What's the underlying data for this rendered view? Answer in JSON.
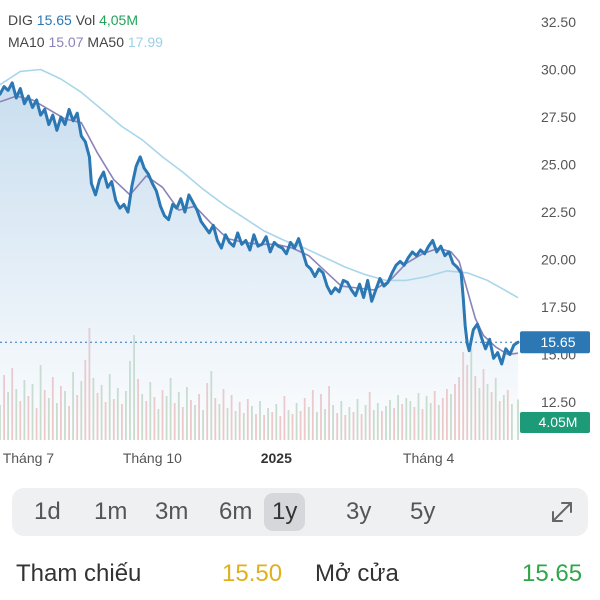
{
  "header": {
    "ticker": "DIG",
    "price": "15.65",
    "vol_label": "Vol",
    "vol_value": "4,05M",
    "ma10_label": "MA10",
    "ma10_value": "15.07",
    "ma50_label": "MA50",
    "ma50_value": "17.99"
  },
  "chart_data": {
    "type": "line",
    "ylim": [
      12.5,
      32.5
    ],
    "y_ticks": [
      "32.50",
      "30.00",
      "27.50",
      "25.00",
      "22.50",
      "20.00",
      "17.50",
      "15.00",
      "12.50"
    ],
    "x_ticks": [
      {
        "label": "Tháng 7",
        "index": 14,
        "bold": false
      },
      {
        "label": "Tháng 10",
        "index": 75,
        "bold": false
      },
      {
        "label": "2025",
        "index": 136,
        "bold": true
      },
      {
        "label": "Tháng 4",
        "index": 211,
        "bold": false
      }
    ],
    "current_price_label": "15.65",
    "current_volume_label": "4.05M",
    "price_points": [
      [
        0,
        28.7
      ],
      [
        2,
        29.1
      ],
      [
        4,
        28.9
      ],
      [
        6,
        29.3
      ],
      [
        8,
        28.5
      ],
      [
        10,
        29.0
      ],
      [
        12,
        28.2
      ],
      [
        14,
        28.6
      ],
      [
        16,
        28.0
      ],
      [
        18,
        28.4
      ],
      [
        20,
        27.6
      ],
      [
        22,
        27.9
      ],
      [
        24,
        27.1
      ],
      [
        26,
        27.6
      ],
      [
        28,
        26.8
      ],
      [
        30,
        27.5
      ],
      [
        32,
        27.1
      ],
      [
        34,
        27.9
      ],
      [
        36,
        27.3
      ],
      [
        38,
        27.7
      ],
      [
        40,
        26.5
      ],
      [
        42,
        26.2
      ],
      [
        44,
        25.4
      ],
      [
        45,
        24.0
      ],
      [
        47,
        23.4
      ],
      [
        49,
        24.2
      ],
      [
        51,
        24.6
      ],
      [
        53,
        23.8
      ],
      [
        55,
        24.1
      ],
      [
        57,
        23.1
      ],
      [
        59,
        22.7
      ],
      [
        61,
        22.9
      ],
      [
        63,
        22.5
      ],
      [
        65,
        23.9
      ],
      [
        67,
        24.9
      ],
      [
        69,
        25.4
      ],
      [
        71,
        24.8
      ],
      [
        73,
        24.5
      ],
      [
        75,
        24.0
      ],
      [
        77,
        23.6
      ],
      [
        79,
        22.8
      ],
      [
        81,
        22.3
      ],
      [
        83,
        22.1
      ],
      [
        85,
        22.9
      ],
      [
        87,
        22.7
      ],
      [
        89,
        23.2
      ],
      [
        91,
        22.5
      ],
      [
        93,
        23.4
      ],
      [
        95,
        23.0
      ],
      [
        97,
        22.6
      ],
      [
        99,
        22.0
      ],
      [
        101,
        21.7
      ],
      [
        103,
        21.4
      ],
      [
        105,
        21.8
      ],
      [
        107,
        21.0
      ],
      [
        109,
        20.6
      ],
      [
        111,
        21.3
      ],
      [
        113,
        20.9
      ],
      [
        115,
        20.7
      ],
      [
        117,
        21.4
      ],
      [
        119,
        20.8
      ],
      [
        121,
        21.0
      ],
      [
        123,
        20.5
      ],
      [
        125,
        21.3
      ],
      [
        127,
        20.7
      ],
      [
        129,
        20.8
      ],
      [
        131,
        21.2
      ],
      [
        133,
        20.4
      ],
      [
        135,
        20.9
      ],
      [
        137,
        20.7
      ],
      [
        139,
        20.6
      ],
      [
        141,
        20.3
      ],
      [
        143,
        20.9
      ],
      [
        145,
        20.6
      ],
      [
        147,
        21.1
      ],
      [
        149,
        20.4
      ],
      [
        151,
        19.7
      ],
      [
        153,
        19.5
      ],
      [
        155,
        19.1
      ],
      [
        157,
        19.5
      ],
      [
        159,
        19.3
      ],
      [
        161,
        18.6
      ],
      [
        163,
        18.2
      ],
      [
        165,
        18.5
      ],
      [
        167,
        18.3
      ],
      [
        169,
        18.9
      ],
      [
        171,
        18.8
      ],
      [
        173,
        18.4
      ],
      [
        175,
        18.1
      ],
      [
        177,
        18.7
      ],
      [
        179,
        18.0
      ],
      [
        181,
        18.9
      ],
      [
        183,
        17.8
      ],
      [
        185,
        18.4
      ],
      [
        187,
        19.0
      ],
      [
        189,
        18.6
      ],
      [
        191,
        18.8
      ],
      [
        193,
        19.3
      ],
      [
        195,
        19.7
      ],
      [
        197,
        19.9
      ],
      [
        199,
        19.7
      ],
      [
        201,
        20.1
      ],
      [
        203,
        20.4
      ],
      [
        205,
        20.2
      ],
      [
        207,
        20.5
      ],
      [
        209,
        20.3
      ],
      [
        211,
        20.7
      ],
      [
        213,
        21.0
      ],
      [
        215,
        20.4
      ],
      [
        217,
        20.7
      ],
      [
        219,
        20.2
      ],
      [
        221,
        20.4
      ],
      [
        223,
        19.8
      ],
      [
        225,
        19.6
      ],
      [
        227,
        19.3
      ],
      [
        228,
        18.0
      ],
      [
        229,
        16.5
      ],
      [
        230,
        15.6
      ],
      [
        231,
        15.2
      ],
      [
        233,
        16.3
      ],
      [
        235,
        16.6
      ],
      [
        237,
        15.9
      ],
      [
        239,
        15.3
      ],
      [
        241,
        15.8
      ],
      [
        243,
        14.8
      ],
      [
        245,
        15.1
      ],
      [
        247,
        14.5
      ],
      [
        249,
        15.3
      ],
      [
        251,
        15.0
      ],
      [
        253,
        15.5
      ],
      [
        255,
        15.65
      ]
    ],
    "ma10_points": [
      [
        0,
        28.3
      ],
      [
        8,
        28.6
      ],
      [
        16,
        28.4
      ],
      [
        24,
        27.9
      ],
      [
        32,
        27.4
      ],
      [
        40,
        27.2
      ],
      [
        48,
        25.6
      ],
      [
        56,
        24.2
      ],
      [
        64,
        23.4
      ],
      [
        72,
        24.4
      ],
      [
        80,
        23.8
      ],
      [
        88,
        22.6
      ],
      [
        96,
        22.8
      ],
      [
        104,
        21.9
      ],
      [
        112,
        21.1
      ],
      [
        120,
        20.9
      ],
      [
        128,
        20.8
      ],
      [
        136,
        20.8
      ],
      [
        144,
        20.6
      ],
      [
        152,
        20.2
      ],
      [
        160,
        19.4
      ],
      [
        168,
        18.6
      ],
      [
        176,
        18.5
      ],
      [
        184,
        18.4
      ],
      [
        192,
        18.9
      ],
      [
        200,
        19.8
      ],
      [
        208,
        20.3
      ],
      [
        216,
        20.6
      ],
      [
        222,
        20.4
      ],
      [
        226,
        19.9
      ],
      [
        230,
        18.4
      ],
      [
        234,
        16.9
      ],
      [
        238,
        16.0
      ],
      [
        244,
        15.4
      ],
      [
        250,
        15.0
      ],
      [
        255,
        15.07
      ]
    ],
    "ma50_points": [
      [
        0,
        29.2
      ],
      [
        10,
        29.9
      ],
      [
        20,
        30.0
      ],
      [
        30,
        29.5
      ],
      [
        40,
        28.8
      ],
      [
        50,
        27.9
      ],
      [
        60,
        27.0
      ],
      [
        70,
        26.3
      ],
      [
        80,
        25.4
      ],
      [
        90,
        24.6
      ],
      [
        100,
        23.7
      ],
      [
        110,
        22.9
      ],
      [
        120,
        22.2
      ],
      [
        130,
        21.5
      ],
      [
        140,
        21.0
      ],
      [
        150,
        20.6
      ],
      [
        160,
        20.1
      ],
      [
        170,
        19.6
      ],
      [
        180,
        19.2
      ],
      [
        190,
        18.9
      ],
      [
        200,
        18.9
      ],
      [
        210,
        19.1
      ],
      [
        220,
        19.4
      ],
      [
        230,
        19.3
      ],
      [
        240,
        18.9
      ],
      [
        250,
        18.3
      ],
      [
        255,
        17.99
      ]
    ],
    "volume_max": 12,
    "volumes": [
      {
        "i": 0,
        "v": 3.5,
        "up": true
      },
      {
        "i": 2,
        "v": 6.5,
        "up": false
      },
      {
        "i": 4,
        "v": 4.8,
        "up": true
      },
      {
        "i": 6,
        "v": 7.2,
        "up": false
      },
      {
        "i": 8,
        "v": 5.1,
        "up": true
      },
      {
        "i": 10,
        "v": 3.9,
        "up": false
      },
      {
        "i": 12,
        "v": 6.0,
        "up": true
      },
      {
        "i": 14,
        "v": 4.4,
        "up": false
      },
      {
        "i": 16,
        "v": 5.6,
        "up": true
      },
      {
        "i": 18,
        "v": 3.2,
        "up": false
      },
      {
        "i": 20,
        "v": 7.5,
        "up": true
      },
      {
        "i": 22,
        "v": 5.0,
        "up": false
      },
      {
        "i": 24,
        "v": 4.2,
        "up": true
      },
      {
        "i": 26,
        "v": 6.3,
        "up": false
      },
      {
        "i": 28,
        "v": 3.7,
        "up": true
      },
      {
        "i": 30,
        "v": 5.4,
        "up": false
      },
      {
        "i": 32,
        "v": 4.9,
        "up": true
      },
      {
        "i": 34,
        "v": 3.4,
        "up": false
      },
      {
        "i": 36,
        "v": 6.8,
        "up": true
      },
      {
        "i": 38,
        "v": 4.5,
        "up": false
      },
      {
        "i": 40,
        "v": 5.9,
        "up": true
      },
      {
        "i": 42,
        "v": 8.0,
        "up": false
      },
      {
        "i": 44,
        "v": 11.2,
        "up": false
      },
      {
        "i": 46,
        "v": 6.2,
        "up": true
      },
      {
        "i": 48,
        "v": 4.7,
        "up": false
      },
      {
        "i": 50,
        "v": 5.5,
        "up": true
      },
      {
        "i": 52,
        "v": 3.8,
        "up": false
      },
      {
        "i": 54,
        "v": 6.6,
        "up": true
      },
      {
        "i": 56,
        "v": 4.1,
        "up": false
      },
      {
        "i": 58,
        "v": 5.2,
        "up": true
      },
      {
        "i": 60,
        "v": 3.6,
        "up": false
      },
      {
        "i": 62,
        "v": 4.9,
        "up": true
      },
      {
        "i": 64,
        "v": 7.9,
        "up": true
      },
      {
        "i": 66,
        "v": 10.5,
        "up": true
      },
      {
        "i": 68,
        "v": 6.1,
        "up": false
      },
      {
        "i": 70,
        "v": 4.6,
        "up": true
      },
      {
        "i": 72,
        "v": 3.9,
        "up": false
      },
      {
        "i": 74,
        "v": 5.8,
        "up": true
      },
      {
        "i": 76,
        "v": 4.3,
        "up": false
      },
      {
        "i": 78,
        "v": 3.1,
        "up": true
      },
      {
        "i": 80,
        "v": 5.0,
        "up": false
      },
      {
        "i": 82,
        "v": 4.4,
        "up": true
      },
      {
        "i": 84,
        "v": 6.2,
        "up": true
      },
      {
        "i": 86,
        "v": 3.7,
        "up": false
      },
      {
        "i": 88,
        "v": 4.8,
        "up": true
      },
      {
        "i": 90,
        "v": 3.3,
        "up": false
      },
      {
        "i": 92,
        "v": 5.3,
        "up": true
      },
      {
        "i": 94,
        "v": 4.0,
        "up": false
      },
      {
        "i": 96,
        "v": 3.5,
        "up": true
      },
      {
        "i": 98,
        "v": 4.6,
        "up": false
      },
      {
        "i": 100,
        "v": 3.0,
        "up": true
      },
      {
        "i": 102,
        "v": 5.7,
        "up": false
      },
      {
        "i": 104,
        "v": 6.9,
        "up": true
      },
      {
        "i": 106,
        "v": 4.2,
        "up": false
      },
      {
        "i": 108,
        "v": 3.6,
        "up": true
      },
      {
        "i": 110,
        "v": 5.1,
        "up": false
      },
      {
        "i": 112,
        "v": 3.2,
        "up": true
      },
      {
        "i": 114,
        "v": 4.5,
        "up": false
      },
      {
        "i": 116,
        "v": 2.9,
        "up": true
      },
      {
        "i": 118,
        "v": 3.8,
        "up": false
      },
      {
        "i": 120,
        "v": 2.7,
        "up": true
      },
      {
        "i": 122,
        "v": 4.1,
        "up": false
      },
      {
        "i": 124,
        "v": 3.4,
        "up": true
      },
      {
        "i": 126,
        "v": 2.6,
        "up": false
      },
      {
        "i": 128,
        "v": 3.9,
        "up": true
      },
      {
        "i": 130,
        "v": 2.5,
        "up": false
      },
      {
        "i": 132,
        "v": 3.2,
        "up": true
      },
      {
        "i": 134,
        "v": 2.8,
        "up": false
      },
      {
        "i": 136,
        "v": 3.6,
        "up": true
      },
      {
        "i": 138,
        "v": 2.4,
        "up": false
      },
      {
        "i": 140,
        "v": 4.4,
        "up": false
      },
      {
        "i": 142,
        "v": 3.0,
        "up": true
      },
      {
        "i": 144,
        "v": 2.6,
        "up": false
      },
      {
        "i": 146,
        "v": 3.7,
        "up": true
      },
      {
        "i": 148,
        "v": 2.9,
        "up": false
      },
      {
        "i": 150,
        "v": 4.2,
        "up": false
      },
      {
        "i": 152,
        "v": 3.3,
        "up": true
      },
      {
        "i": 154,
        "v": 5.0,
        "up": false
      },
      {
        "i": 156,
        "v": 2.8,
        "up": true
      },
      {
        "i": 158,
        "v": 4.6,
        "up": false
      },
      {
        "i": 160,
        "v": 3.1,
        "up": true
      },
      {
        "i": 162,
        "v": 5.4,
        "up": false
      },
      {
        "i": 164,
        "v": 3.5,
        "up": true
      },
      {
        "i": 166,
        "v": 2.7,
        "up": false
      },
      {
        "i": 168,
        "v": 3.9,
        "up": true
      },
      {
        "i": 170,
        "v": 2.5,
        "up": false
      },
      {
        "i": 172,
        "v": 3.3,
        "up": true
      },
      {
        "i": 174,
        "v": 2.8,
        "up": false
      },
      {
        "i": 176,
        "v": 4.1,
        "up": true
      },
      {
        "i": 178,
        "v": 2.6,
        "up": false
      },
      {
        "i": 180,
        "v": 3.5,
        "up": true
      },
      {
        "i": 182,
        "v": 4.8,
        "up": false
      },
      {
        "i": 184,
        "v": 3.0,
        "up": true
      },
      {
        "i": 186,
        "v": 3.7,
        "up": true
      },
      {
        "i": 188,
        "v": 2.9,
        "up": false
      },
      {
        "i": 190,
        "v": 3.4,
        "up": true
      },
      {
        "i": 192,
        "v": 4.0,
        "up": true
      },
      {
        "i": 194,
        "v": 3.2,
        "up": false
      },
      {
        "i": 196,
        "v": 4.5,
        "up": true
      },
      {
        "i": 198,
        "v": 3.6,
        "up": false
      },
      {
        "i": 200,
        "v": 4.2,
        "up": true
      },
      {
        "i": 202,
        "v": 3.9,
        "up": true
      },
      {
        "i": 204,
        "v": 3.3,
        "up": false
      },
      {
        "i": 206,
        "v": 4.7,
        "up": true
      },
      {
        "i": 208,
        "v": 3.1,
        "up": false
      },
      {
        "i": 210,
        "v": 4.4,
        "up": true
      },
      {
        "i": 212,
        "v": 3.7,
        "up": true
      },
      {
        "i": 214,
        "v": 4.9,
        "up": false
      },
      {
        "i": 216,
        "v": 3.5,
        "up": true
      },
      {
        "i": 218,
        "v": 4.2,
        "up": false
      },
      {
        "i": 220,
        "v": 5.1,
        "up": false
      },
      {
        "i": 222,
        "v": 4.6,
        "up": true
      },
      {
        "i": 224,
        "v": 5.6,
        "up": false
      },
      {
        "i": 226,
        "v": 6.3,
        "up": false
      },
      {
        "i": 228,
        "v": 8.8,
        "up": false
      },
      {
        "i": 230,
        "v": 7.5,
        "up": false
      },
      {
        "i": 232,
        "v": 9.2,
        "up": true
      },
      {
        "i": 234,
        "v": 6.4,
        "up": false
      },
      {
        "i": 236,
        "v": 5.2,
        "up": true
      },
      {
        "i": 238,
        "v": 7.1,
        "up": false
      },
      {
        "i": 240,
        "v": 5.6,
        "up": true
      },
      {
        "i": 242,
        "v": 4.8,
        "up": false
      },
      {
        "i": 244,
        "v": 6.2,
        "up": true
      },
      {
        "i": 246,
        "v": 3.9,
        "up": false
      },
      {
        "i": 248,
        "v": 4.5,
        "up": true
      },
      {
        "i": 250,
        "v": 5.0,
        "up": false
      },
      {
        "i": 252,
        "v": 3.6,
        "up": true
      },
      {
        "i": 255,
        "v": 4.05,
        "up": true
      }
    ]
  },
  "period_selector": {
    "options": [
      "1d",
      "1m",
      "3m",
      "6m",
      "1y",
      "3y",
      "5y"
    ],
    "active": "1y"
  },
  "reference": {
    "label": "Tham chiếu",
    "value": "15.50",
    "open_label": "Mở cửa",
    "open_value": "15.65"
  },
  "colors": {
    "price_line": "#2b78b4",
    "area_top": "#c6dcee",
    "ma10_line": "#8a82b8",
    "ma50_line": "#a9d6ea",
    "vol_up": "#c9dcc9",
    "vol_down": "#f1c6c6",
    "price_badge": "#2b78b4",
    "volume_badge": "#1d9a78"
  }
}
